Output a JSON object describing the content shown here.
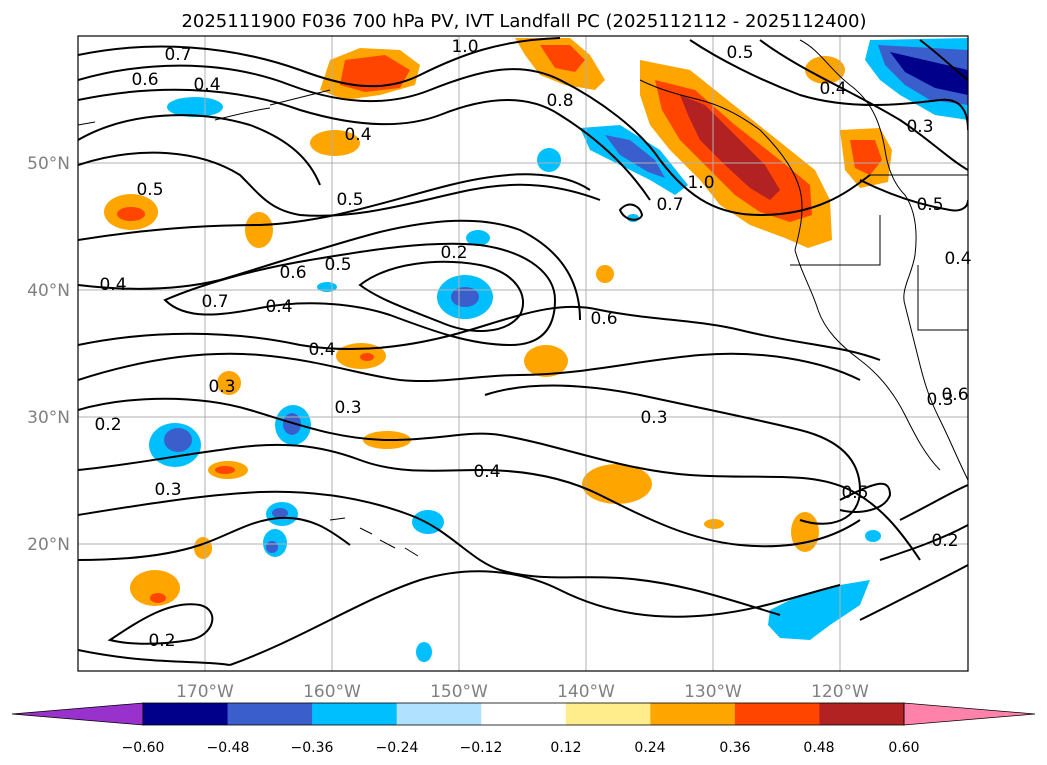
{
  "title": "2025111900 F036 700 hPa PV, IVT Landfall PC (2025112112 - 2025112400)",
  "lat_ticks": [
    "50°N",
    "40°N",
    "30°N",
    "20°N"
  ],
  "lon_ticks": [
    "170°W",
    "160°W",
    "150°W",
    "140°W",
    "130°W",
    "120°W"
  ],
  "contour_labels": [
    "0.7",
    "0.6",
    "0.4",
    "0.4",
    "1.0",
    "0.5",
    "0.4",
    "0.8",
    "0.5",
    "0.3",
    "0.5",
    "0.5",
    "0.2",
    "1.0",
    "0.7",
    "0.4",
    "0.6",
    "0.7",
    "0.4",
    "0.5",
    "0.6",
    "0.4",
    "0.3",
    "0.3",
    "0.2",
    "0.3",
    "0.3",
    "0.4",
    "0.5",
    "0.3",
    "0.2",
    "0.2",
    "0.6",
    "0.4"
  ],
  "colorbar": {
    "levels": [
      "−0.60",
      "−0.48",
      "−0.36",
      "−0.24",
      "−0.12",
      "0.12",
      "0.24",
      "0.36",
      "0.48",
      "0.60"
    ],
    "colors": [
      "#9932cc",
      "#00008b",
      "#3a5fcd",
      "#00bfff",
      "#b0e2ff",
      "#ffffff",
      "#ffec8b",
      "#ffa500",
      "#ff4500",
      "#b22222",
      "#ff82ab"
    ]
  },
  "colors": {
    "neg_light": "#b0e2ff",
    "neg_mid": "#00bfff",
    "neg_dark": "#3a5fcd",
    "neg_darkest": "#00008b",
    "pos_light": "#ffec8b",
    "pos_mid": "#ffa500",
    "pos_dark": "#ff4500",
    "pos_darkest": "#b22222"
  }
}
